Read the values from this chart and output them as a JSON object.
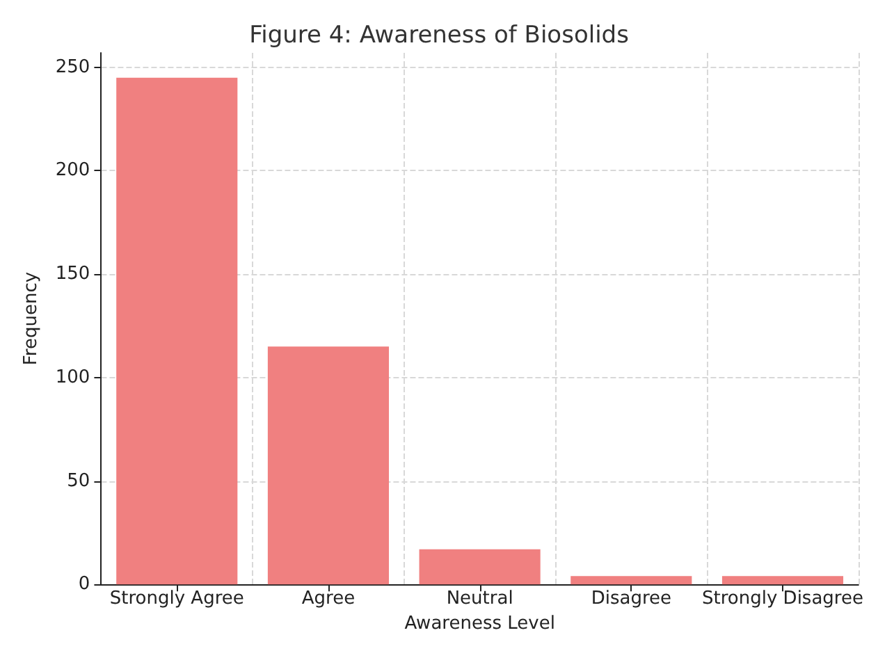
{
  "chart_data": {
    "type": "bar",
    "title": "Figure 4: Awareness of Biosolids",
    "xlabel": "Awareness Level",
    "ylabel": "Frequency",
    "categories": [
      "Strongly Agree",
      "Agree",
      "Neutral",
      "Disagree",
      "Strongly Disagree"
    ],
    "values": [
      245,
      115,
      17,
      4,
      4
    ],
    "color": "#f08080",
    "ylim": [
      0,
      257
    ],
    "yticks": [
      0,
      50,
      100,
      150,
      200,
      250
    ],
    "grid": true
  }
}
